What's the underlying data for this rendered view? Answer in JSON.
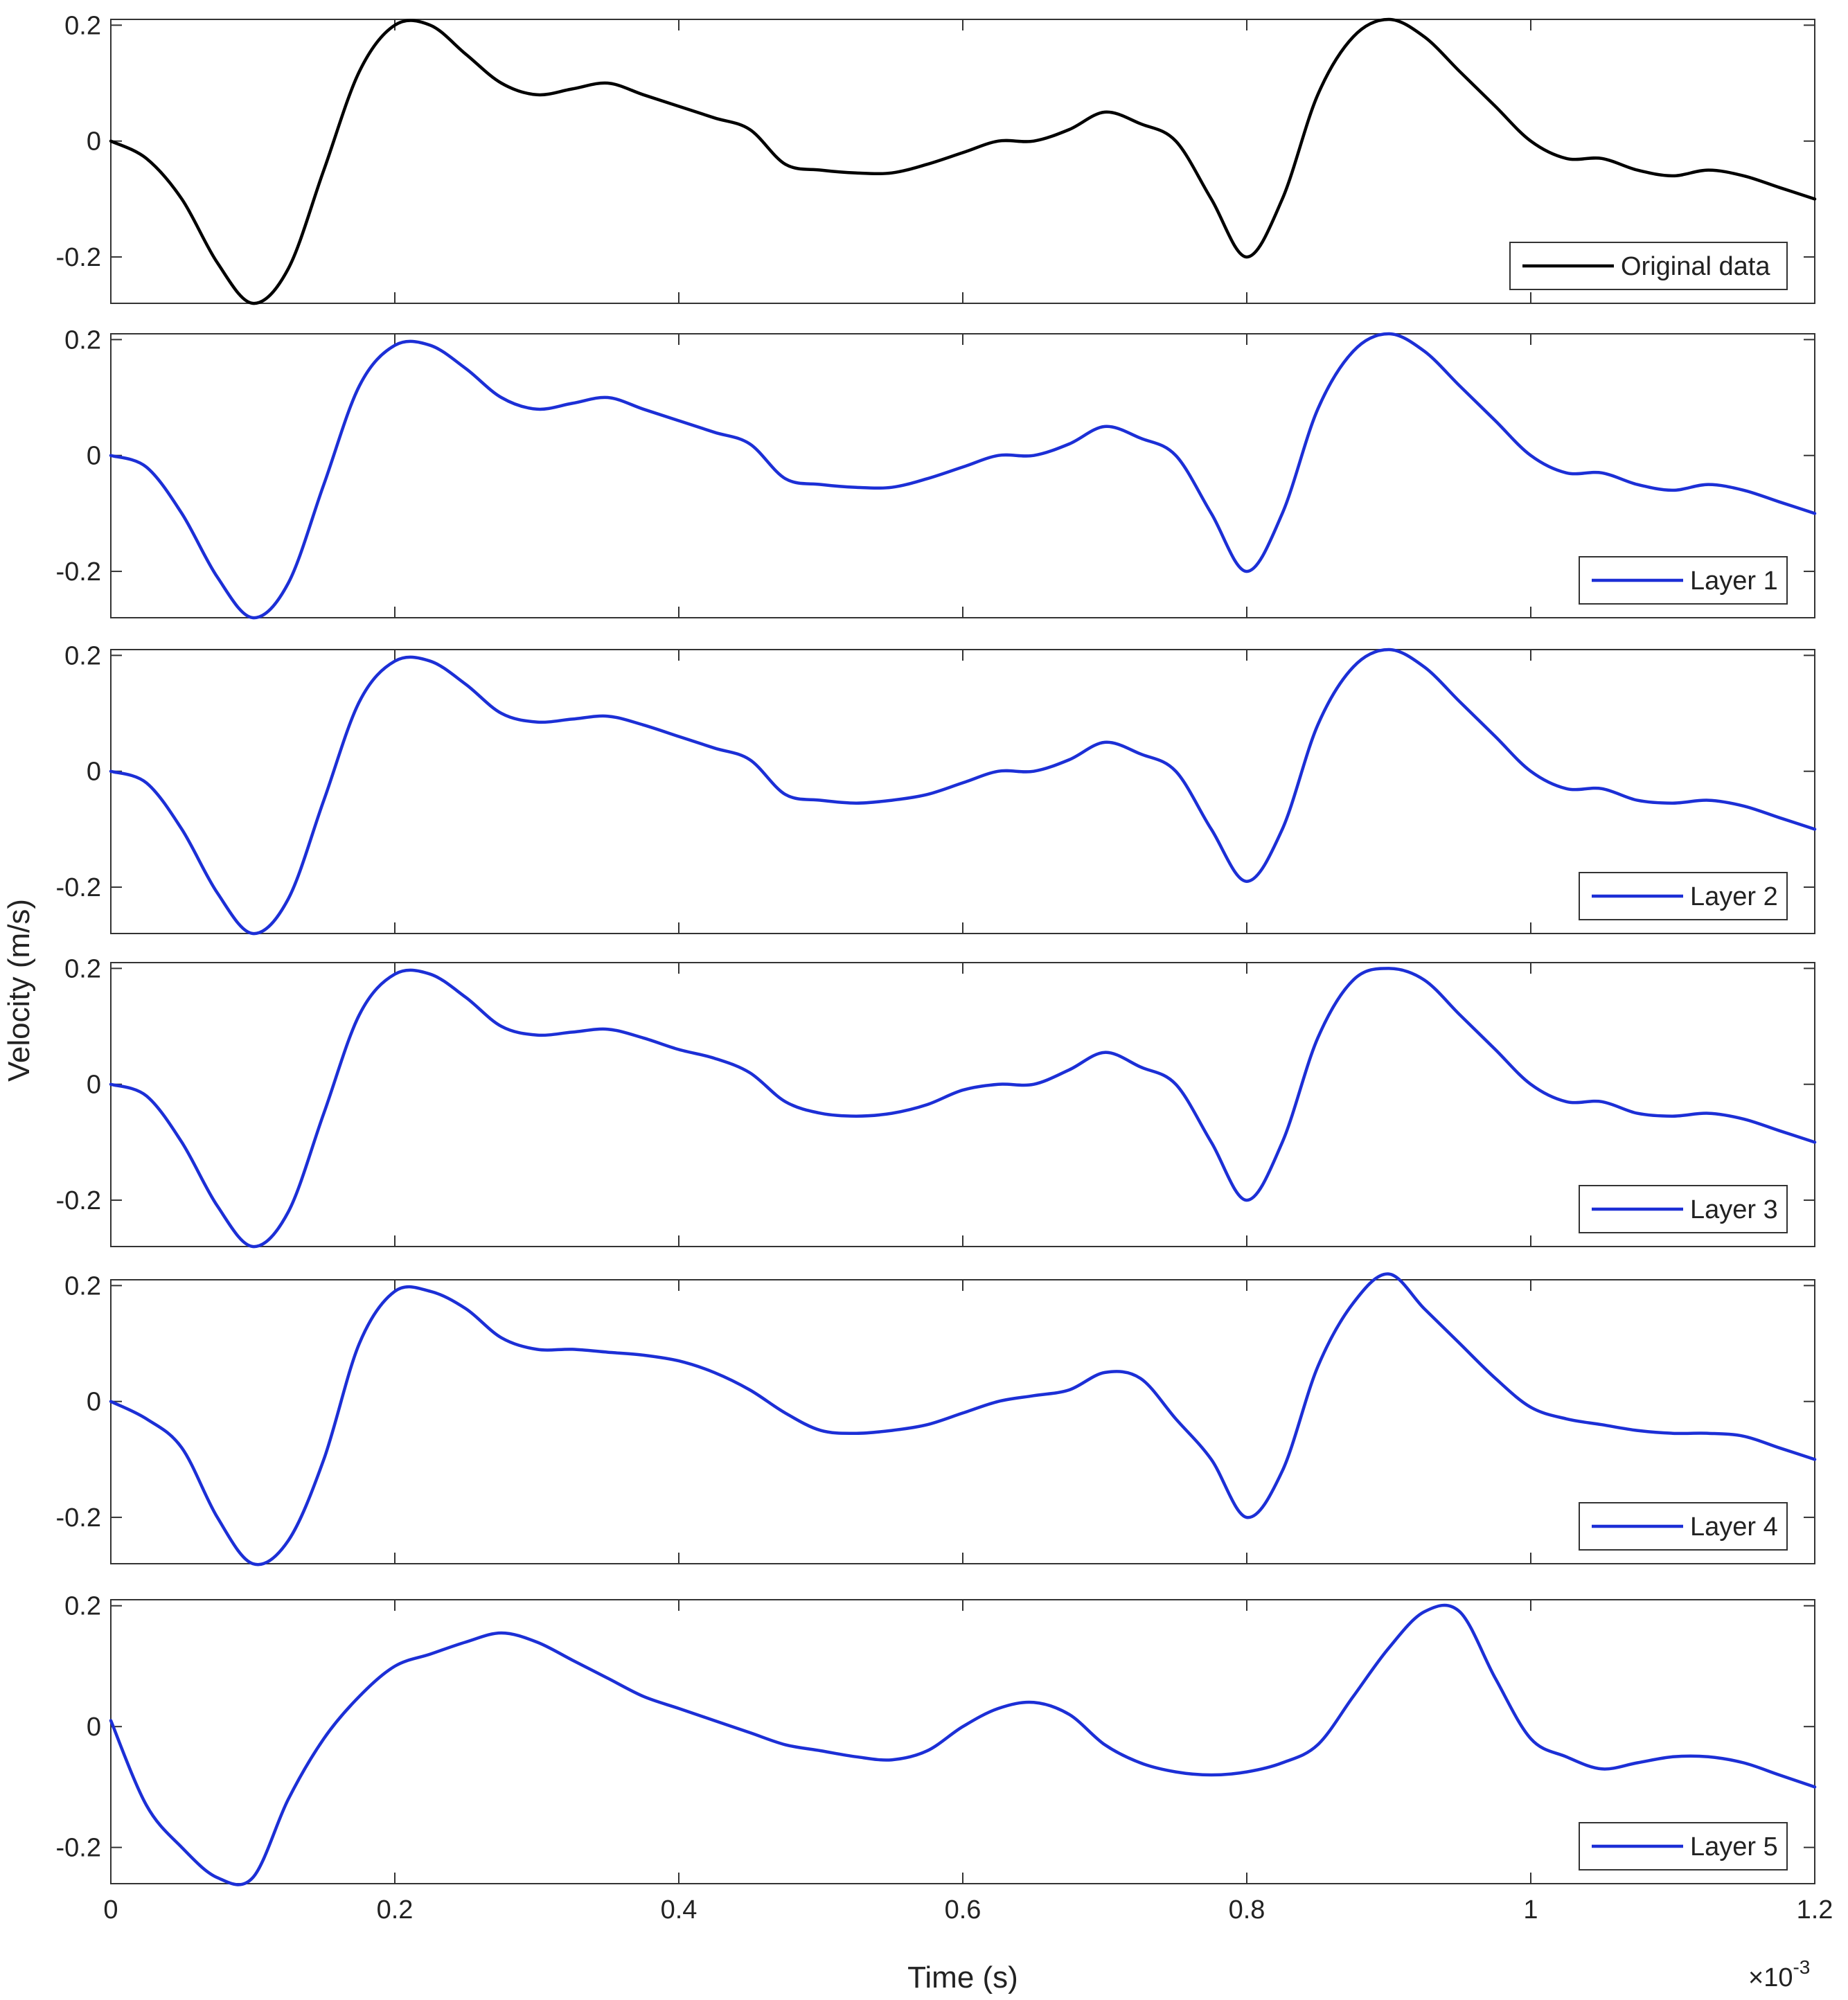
{
  "chart_data": {
    "type": "line",
    "ylabel": "Velocity (m/s)",
    "xlabel": "Time (s)",
    "x_exponent_label": "×10",
    "x_exponent_power": "-3",
    "xlim": [
      0,
      1.2
    ],
    "xticks": [
      "0",
      "0.2",
      "0.4",
      "0.6",
      "0.8",
      "1",
      "1.2"
    ],
    "xtick_values": [
      0,
      0.2,
      0.4,
      0.6,
      0.8,
      1.0,
      1.2
    ],
    "x": [
      0,
      0.025,
      0.05,
      0.075,
      0.1,
      0.125,
      0.15,
      0.175,
      0.2,
      0.225,
      0.25,
      0.275,
      0.3,
      0.325,
      0.35,
      0.375,
      0.4,
      0.425,
      0.45,
      0.475,
      0.5,
      0.525,
      0.55,
      0.575,
      0.6,
      0.625,
      0.65,
      0.675,
      0.7,
      0.725,
      0.75,
      0.775,
      0.8,
      0.825,
      0.85,
      0.875,
      0.9,
      0.925,
      0.95,
      0.975,
      1.0,
      1.025,
      1.05,
      1.075,
      1.1,
      1.125,
      1.15,
      1.175,
      1.2
    ],
    "panels": [
      {
        "name": "Original data",
        "color": "#000000",
        "ylim": [
          -0.28,
          0.21
        ],
        "yticks": [
          "0.2",
          "0",
          "-0.2"
        ],
        "ytick_values": [
          0.2,
          0,
          -0.2
        ],
        "values": [
          0.0,
          -0.03,
          -0.1,
          -0.21,
          -0.28,
          -0.22,
          -0.05,
          0.12,
          0.2,
          0.2,
          0.15,
          0.1,
          0.08,
          0.09,
          0.1,
          0.08,
          0.06,
          0.04,
          0.02,
          -0.04,
          -0.05,
          -0.055,
          -0.055,
          -0.04,
          -0.02,
          0.0,
          0.0,
          0.02,
          0.05,
          0.03,
          0.0,
          -0.1,
          -0.2,
          -0.1,
          0.08,
          0.18,
          0.21,
          0.18,
          0.12,
          0.06,
          0.0,
          -0.03,
          -0.03,
          -0.05,
          -0.06,
          -0.05,
          -0.06,
          -0.08,
          -0.1
        ]
      },
      {
        "name": "Layer 1",
        "color": "#1c2fd6",
        "ylim": [
          -0.28,
          0.21
        ],
        "yticks": [
          "0.2",
          "0",
          "-0.2"
        ],
        "ytick_values": [
          0.2,
          0,
          -0.2
        ],
        "values": [
          0.0,
          -0.02,
          -0.1,
          -0.21,
          -0.28,
          -0.22,
          -0.05,
          0.12,
          0.19,
          0.19,
          0.15,
          0.1,
          0.08,
          0.09,
          0.1,
          0.08,
          0.06,
          0.04,
          0.02,
          -0.04,
          -0.05,
          -0.055,
          -0.055,
          -0.04,
          -0.02,
          0.0,
          0.0,
          0.02,
          0.05,
          0.03,
          0.0,
          -0.1,
          -0.2,
          -0.1,
          0.08,
          0.18,
          0.21,
          0.18,
          0.12,
          0.06,
          0.0,
          -0.03,
          -0.03,
          -0.05,
          -0.06,
          -0.05,
          -0.06,
          -0.08,
          -0.1
        ]
      },
      {
        "name": "Layer 2",
        "color": "#1c2fd6",
        "ylim": [
          -0.28,
          0.21
        ],
        "yticks": [
          "0.2",
          "0",
          "-0.2"
        ],
        "ytick_values": [
          0.2,
          0,
          -0.2
        ],
        "values": [
          0.0,
          -0.02,
          -0.1,
          -0.21,
          -0.28,
          -0.22,
          -0.05,
          0.12,
          0.19,
          0.19,
          0.15,
          0.1,
          0.085,
          0.09,
          0.095,
          0.08,
          0.06,
          0.04,
          0.02,
          -0.04,
          -0.05,
          -0.055,
          -0.05,
          -0.04,
          -0.02,
          0.0,
          0.0,
          0.02,
          0.05,
          0.03,
          0.0,
          -0.1,
          -0.19,
          -0.1,
          0.08,
          0.18,
          0.21,
          0.18,
          0.12,
          0.06,
          0.0,
          -0.03,
          -0.03,
          -0.05,
          -0.055,
          -0.05,
          -0.06,
          -0.08,
          -0.1
        ]
      },
      {
        "name": "Layer 3",
        "color": "#1c2fd6",
        "ylim": [
          -0.28,
          0.21
        ],
        "yticks": [
          "0.2",
          "0",
          "-0.2"
        ],
        "ytick_values": [
          0.2,
          0,
          -0.2
        ],
        "values": [
          0.0,
          -0.02,
          -0.1,
          -0.21,
          -0.28,
          -0.22,
          -0.05,
          0.12,
          0.19,
          0.19,
          0.15,
          0.1,
          0.085,
          0.09,
          0.095,
          0.08,
          0.06,
          0.045,
          0.02,
          -0.03,
          -0.05,
          -0.055,
          -0.05,
          -0.035,
          -0.01,
          0.0,
          0.0,
          0.025,
          0.055,
          0.03,
          0.0,
          -0.1,
          -0.2,
          -0.1,
          0.08,
          0.18,
          0.2,
          0.18,
          0.12,
          0.06,
          0.0,
          -0.03,
          -0.03,
          -0.05,
          -0.055,
          -0.05,
          -0.06,
          -0.08,
          -0.1
        ]
      },
      {
        "name": "Layer 4",
        "color": "#1c2fd6",
        "ylim": [
          -0.28,
          0.21
        ],
        "yticks": [
          "0.2",
          "0",
          "-0.2"
        ],
        "ytick_values": [
          0.2,
          0,
          -0.2
        ],
        "values": [
          0.0,
          -0.03,
          -0.08,
          -0.2,
          -0.28,
          -0.24,
          -0.1,
          0.1,
          0.19,
          0.19,
          0.16,
          0.11,
          0.09,
          0.09,
          0.085,
          0.08,
          0.07,
          0.05,
          0.02,
          -0.02,
          -0.05,
          -0.055,
          -0.05,
          -0.04,
          -0.02,
          0.0,
          0.01,
          0.02,
          0.05,
          0.04,
          -0.03,
          -0.1,
          -0.2,
          -0.12,
          0.06,
          0.17,
          0.22,
          0.16,
          0.1,
          0.04,
          -0.01,
          -0.03,
          -0.04,
          -0.05,
          -0.055,
          -0.055,
          -0.06,
          -0.08,
          -0.1
        ]
      },
      {
        "name": "Layer 5",
        "color": "#1c2fd6",
        "ylim": [
          -0.26,
          0.21
        ],
        "yticks": [
          "0.2",
          "0",
          "-0.2"
        ],
        "ytick_values": [
          0.2,
          0,
          -0.2
        ],
        "values": [
          0.01,
          -0.13,
          -0.2,
          -0.25,
          -0.25,
          -0.12,
          -0.02,
          0.05,
          0.1,
          0.12,
          0.14,
          0.155,
          0.14,
          0.11,
          0.08,
          0.05,
          0.03,
          0.01,
          -0.01,
          -0.03,
          -0.04,
          -0.05,
          -0.055,
          -0.04,
          0.0,
          0.03,
          0.04,
          0.02,
          -0.03,
          -0.06,
          -0.075,
          -0.08,
          -0.075,
          -0.06,
          -0.03,
          0.05,
          0.13,
          0.19,
          0.19,
          0.08,
          -0.02,
          -0.05,
          -0.07,
          -0.06,
          -0.05,
          -0.05,
          -0.06,
          -0.08,
          -0.1
        ]
      }
    ]
  }
}
